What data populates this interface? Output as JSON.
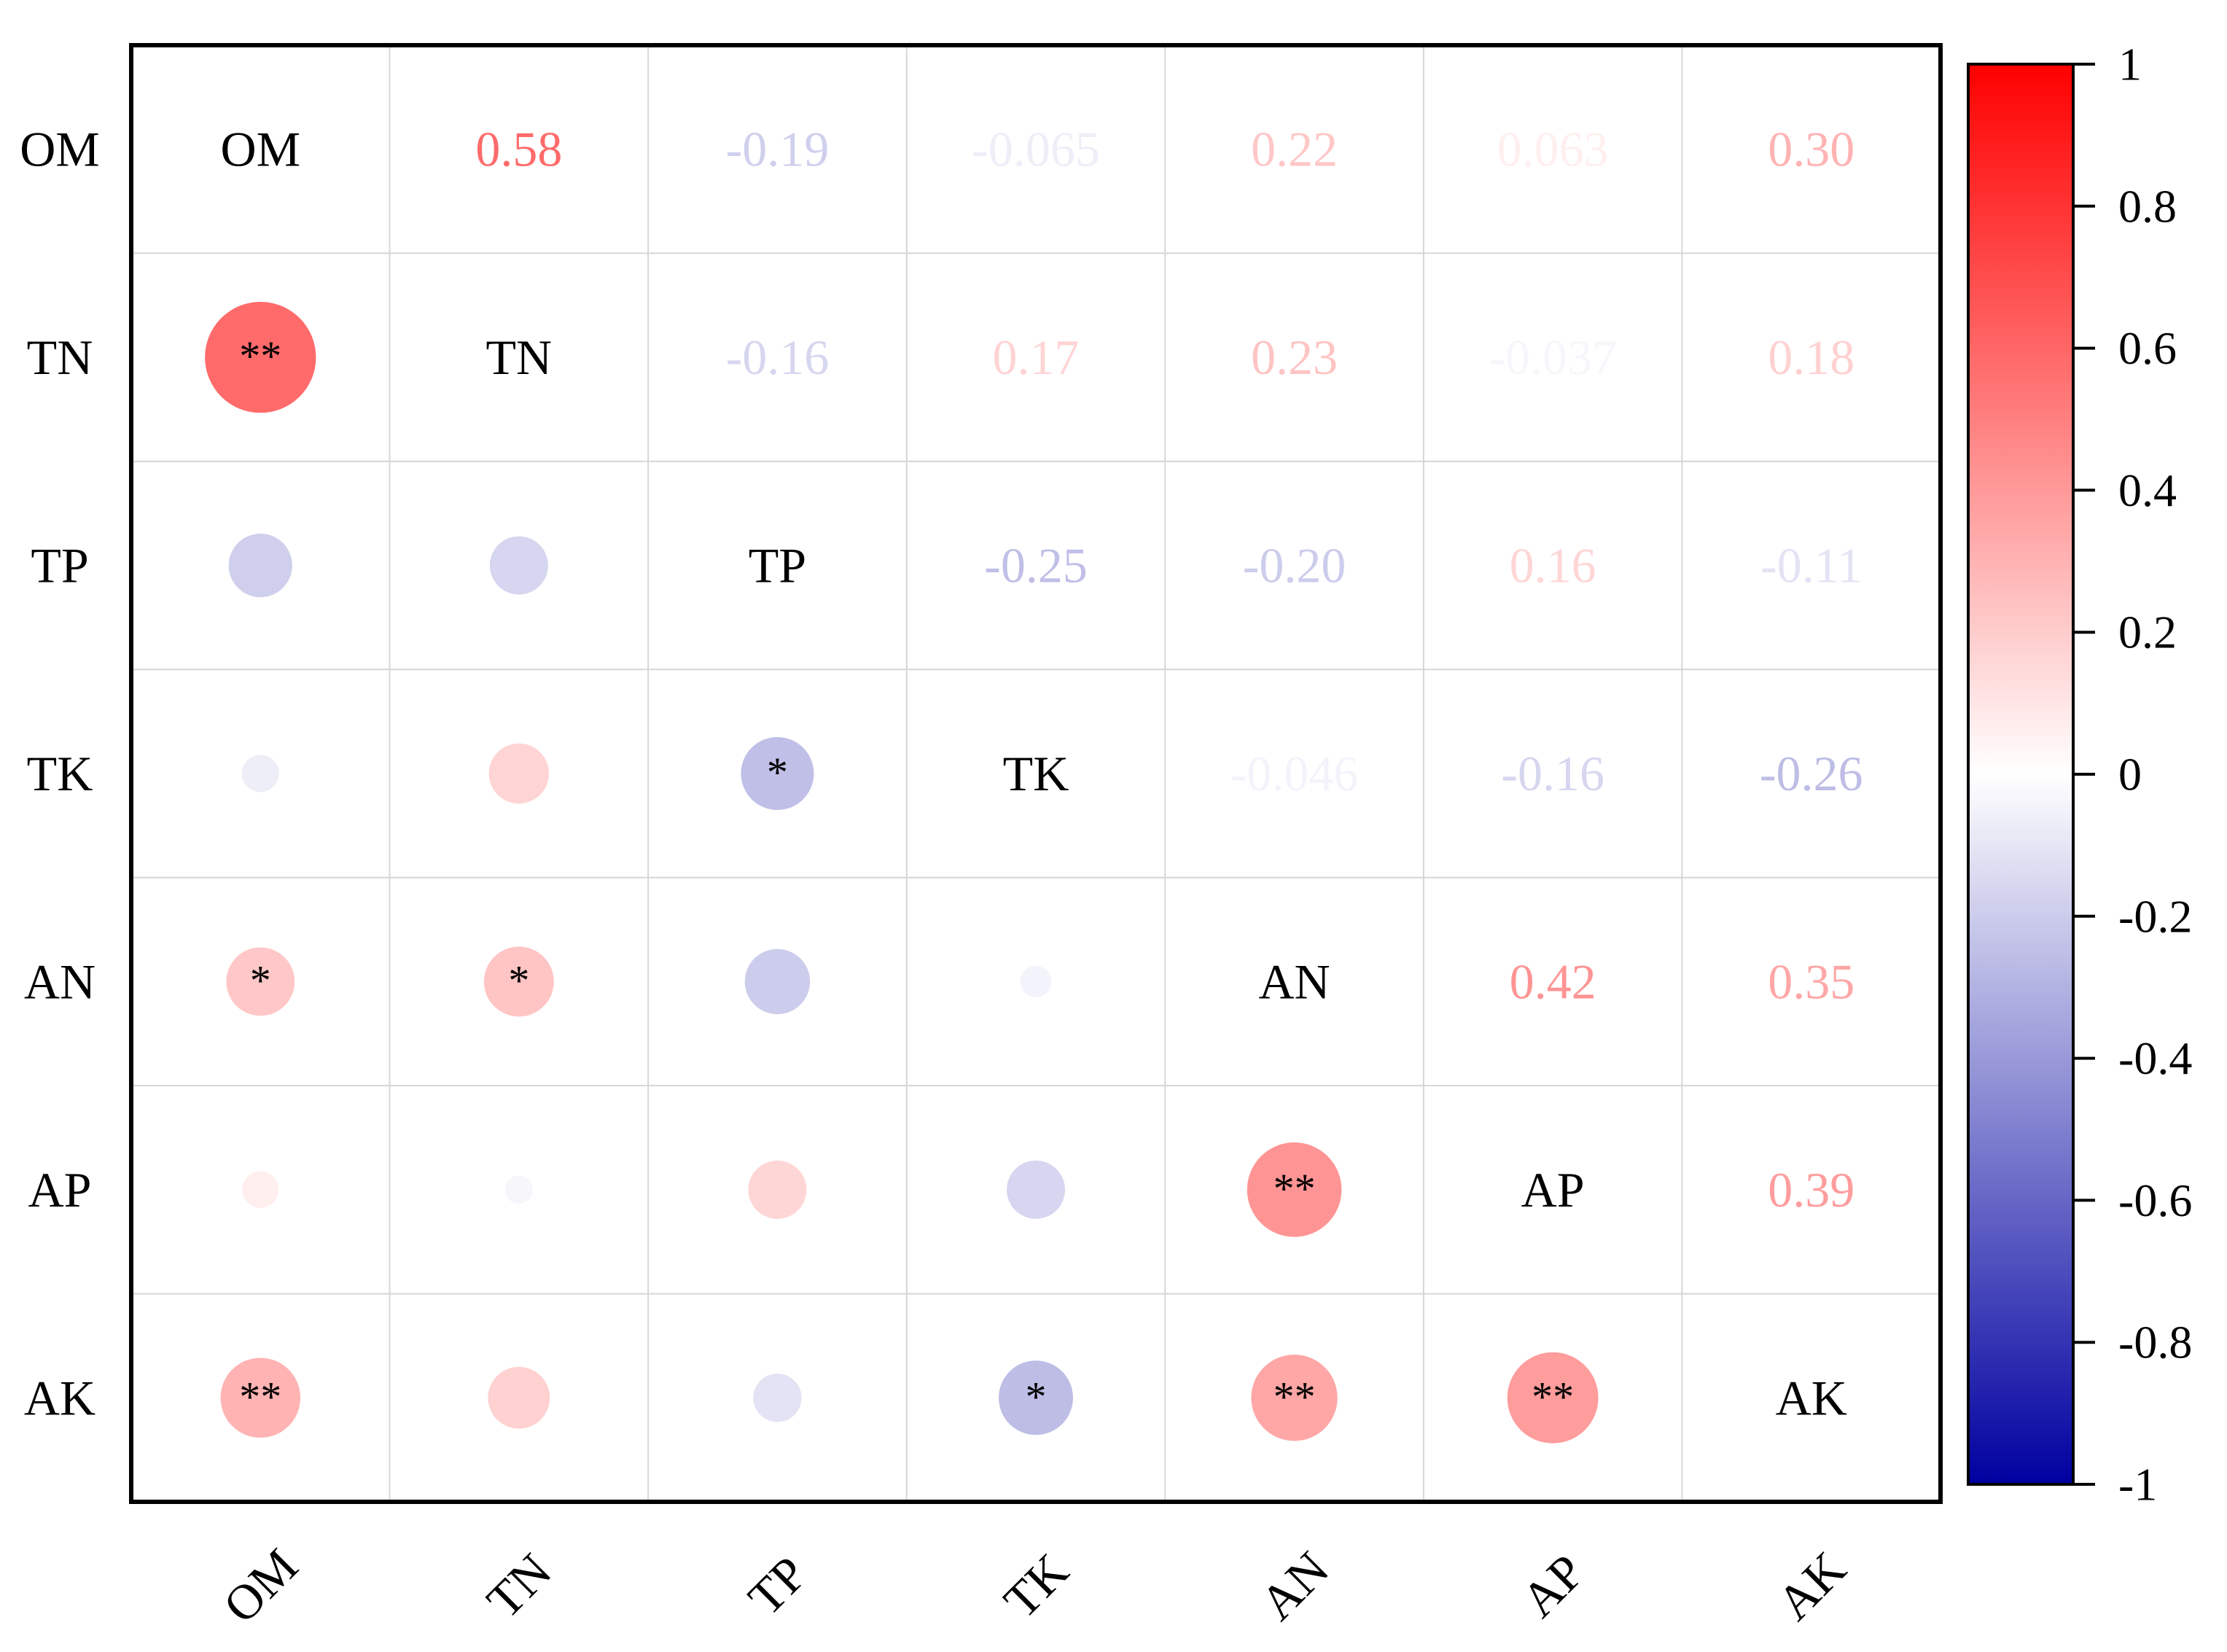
{
  "chart_data": {
    "type": "heatmap",
    "subtype": "correlation-matrix",
    "variables": [
      "OM",
      "TN",
      "TP",
      "TK",
      "AN",
      "AP",
      "AK"
    ],
    "matrix": [
      [
        1,
        0.58,
        -0.19,
        -0.065,
        0.22,
        0.063,
        0.3
      ],
      [
        0.58,
        1,
        -0.16,
        0.17,
        0.23,
        -0.037,
        0.18
      ],
      [
        -0.19,
        -0.16,
        1,
        -0.25,
        -0.2,
        0.16,
        -0.11
      ],
      [
        -0.065,
        0.17,
        -0.25,
        1,
        -0.046,
        -0.16,
        -0.26
      ],
      [
        0.22,
        0.23,
        -0.2,
        -0.046,
        1,
        0.42,
        0.35
      ],
      [
        0.063,
        -0.037,
        0.16,
        -0.16,
        0.42,
        1,
        0.39
      ],
      [
        0.3,
        0.18,
        -0.11,
        -0.26,
        0.35,
        0.39,
        1
      ]
    ],
    "upper_labels": [
      [
        "",
        "0.58",
        "-0.19",
        "-0.065",
        "0.22",
        "0.063",
        "0.30"
      ],
      [
        "",
        "",
        "-0.16",
        "0.17",
        "0.23",
        "-0.037",
        "0.18"
      ],
      [
        "",
        "",
        "",
        "-0.25",
        "-0.20",
        "0.16",
        "-0.11"
      ],
      [
        "",
        "",
        "",
        "",
        "-0.046",
        "-0.16",
        "-0.26"
      ],
      [
        "",
        "",
        "",
        "",
        "",
        "0.42",
        "0.35"
      ],
      [
        "",
        "",
        "",
        "",
        "",
        "",
        "0.39"
      ],
      [
        "",
        "",
        "",
        "",
        "",
        "",
        ""
      ]
    ],
    "significance": [
      [
        "",
        "",
        "",
        "",
        "",
        "",
        ""
      ],
      [
        "**",
        "",
        "",
        "",
        "",
        "",
        ""
      ],
      [
        "",
        "",
        "",
        "",
        "",
        "",
        ""
      ],
      [
        "",
        "",
        "*",
        "",
        "",
        "",
        ""
      ],
      [
        "*",
        "*",
        "",
        "",
        "",
        "",
        ""
      ],
      [
        "",
        "",
        "",
        "",
        "**",
        "",
        ""
      ],
      [
        "**",
        "",
        "",
        "*",
        "**",
        "**",
        ""
      ]
    ],
    "colorbar": {
      "range": [
        -1,
        1
      ],
      "ticks": [
        1,
        0.8,
        0.6,
        0.4,
        0.2,
        0,
        -0.2,
        -0.4,
        -0.6,
        -0.8,
        -1
      ],
      "tick_labels": [
        "1",
        "0.8",
        "0.6",
        "0.4",
        "0.2",
        "0",
        "-0.2",
        "-0.4",
        "-0.6",
        "-0.8",
        "-1"
      ],
      "colors": {
        "negative": "#0000a0",
        "zero": "#ffffff",
        "positive": "#ff0000"
      }
    },
    "lower_glyph": "circle",
    "upper_glyph": "number",
    "diagonal_glyph": "variable-name"
  }
}
